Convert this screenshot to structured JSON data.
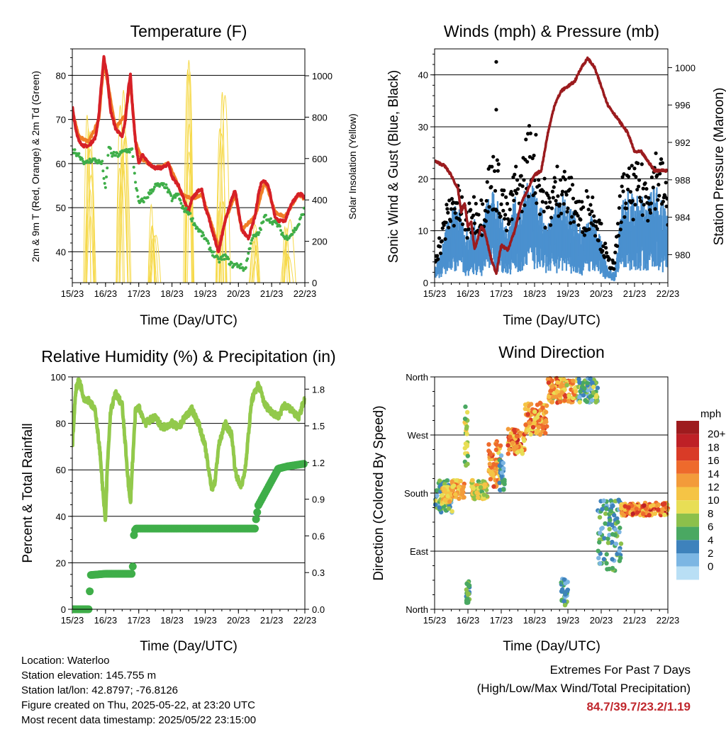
{
  "panels": {
    "temperature": {
      "title": "Temperature (F)",
      "xlabel": "Time (Day/UTC)",
      "ylabel_left": "2m & 9m T (Red, Orange) & 2m Td (Green)",
      "ylabel_right": "Solar Insolation (Yellow)"
    },
    "winds": {
      "title": "Winds (mph) & Pressure (mb)",
      "xlabel": "Time (Day/UTC)",
      "ylabel_left": "Sonic Wind & Gust (Blue, Black)",
      "ylabel_right": "Station Pressure (Maroon)"
    },
    "humidity": {
      "title": "Relative Humidity (%) & Precipitation (in)",
      "xlabel": "Time (Day/UTC)",
      "ylabel_left": "Percent & Total Rainfall"
    },
    "direction": {
      "title": "Wind Direction",
      "xlabel": "Time (Day/UTC)",
      "ylabel_left": "Direction (Colored By Speed)",
      "legend_title": "mph"
    }
  },
  "info": {
    "location": "Location: Waterloo",
    "elevation": "Station elevation: 145.755 m",
    "latlon": "Station lat/lon: 42.8797; -76.8126",
    "created": "Figure created on Thu, 2025-05-22, at 23:20 UTC",
    "timestamp": "Most recent data timestamp: 2025/05/22 23:15:00"
  },
  "extremes": {
    "line1": "Extremes For Past 7 Days",
    "line2": "(High/Low/Max Wind/Total Precipitation)",
    "values": "84.7/39.7/23.2/1.19"
  },
  "chart_data": [
    {
      "type": "line",
      "title": "Temperature (F)",
      "xlabel": "Time (Day/UTC)",
      "x_ticks": [
        "15/23",
        "16/23",
        "17/23",
        "18/23",
        "19/23",
        "20/23",
        "21/23",
        "22/23"
      ],
      "xlim": [
        0,
        7
      ],
      "ylim": [
        33,
        86
      ],
      "y_ticks": [
        40,
        50,
        60,
        70,
        80
      ],
      "ylim_right": [
        0,
        1130
      ],
      "y_ticks_right": [
        0,
        200,
        400,
        600,
        800,
        1000
      ],
      "colors": {
        "temp2m": "#d62027",
        "temp9m": "#f07e26",
        "dewpoint": "#3fae49",
        "solar": "#f6d94a"
      },
      "series": [
        {
          "key": "temp2m",
          "x": [
            0,
            0.1,
            0.2,
            0.35,
            0.5,
            0.7,
            0.8,
            0.85,
            0.9,
            0.95,
            1.05,
            1.15,
            1.3,
            1.5,
            1.6,
            1.7,
            1.75,
            1.8,
            1.9,
            2.0,
            2.1,
            2.3,
            2.5,
            2.7,
            2.9,
            3.0,
            3.2,
            3.3,
            3.5,
            3.6,
            3.8,
            3.9,
            4.0,
            4.1,
            4.2,
            4.4,
            4.6,
            4.8,
            4.9,
            5.1,
            5.3,
            5.5,
            5.6,
            5.7,
            5.8,
            5.9,
            6.1,
            6.2,
            6.4,
            6.6,
            6.8,
            6.9,
            7.0
          ],
          "values": [
            73,
            68,
            65,
            64,
            64,
            66,
            71,
            76,
            80,
            84,
            80,
            72,
            68,
            66,
            70,
            78,
            80,
            74,
            65,
            60,
            62,
            60,
            59,
            59,
            60,
            57,
            55,
            53,
            49,
            52,
            54,
            54,
            50,
            48,
            45,
            40,
            47,
            52,
            54,
            45,
            43,
            48,
            53,
            56,
            56,
            55,
            48,
            47,
            47,
            51,
            53,
            53,
            52
          ]
        },
        {
          "key": "temp9m",
          "x": [
            0,
            0.2,
            0.5,
            0.8,
            0.95,
            1.05,
            1.3,
            1.6,
            1.75,
            1.9,
            2.1,
            2.5,
            2.9,
            3.3,
            3.6,
            3.9,
            4.2,
            4.4,
            4.6,
            4.9,
            5.1,
            5.5,
            5.8,
            6.1,
            6.4,
            6.8,
            7.0
          ],
          "values": [
            72,
            66,
            65,
            70,
            83,
            79,
            68,
            71,
            79,
            65,
            61,
            59,
            60,
            53,
            52,
            53,
            46,
            41,
            47,
            53,
            45,
            48,
            56,
            49,
            48,
            53,
            52
          ]
        },
        {
          "key": "dewpoint",
          "x": [
            0,
            0.2,
            0.4,
            0.6,
            0.9,
            1.0,
            1.1,
            1.2,
            1.4,
            1.6,
            1.8,
            1.9,
            2.0,
            2.2,
            2.5,
            2.8,
            3.0,
            3.2,
            3.3,
            3.5,
            3.7,
            4.0,
            4.2,
            4.4,
            4.6,
            4.8,
            5.0,
            5.2,
            5.4,
            5.6,
            5.8,
            6.0,
            6.2,
            6.4,
            6.6,
            6.8,
            7.0
          ],
          "values": [
            63,
            62,
            60,
            61,
            60,
            54,
            64,
            62,
            62,
            63,
            63,
            56,
            51,
            52,
            55,
            55,
            52,
            53,
            50,
            49,
            46,
            43,
            40,
            38,
            39,
            37,
            37,
            36,
            43,
            44,
            48,
            47,
            46,
            43,
            44,
            46,
            50
          ]
        },
        {
          "key": "solar",
          "axis": "right",
          "peaks": [
            {
              "center": 0.55,
              "width": 0.35,
              "value": 920
            },
            {
              "center": 1.55,
              "width": 0.35,
              "value": 980
            },
            {
              "center": 2.5,
              "width": 0.3,
              "value": 400
            },
            {
              "center": 3.55,
              "width": 0.3,
              "value": 1120
            },
            {
              "center": 4.55,
              "width": 0.35,
              "value": 980
            },
            {
              "center": 5.55,
              "width": 0.3,
              "value": 300
            },
            {
              "center": 6.5,
              "width": 0.35,
              "value": 330
            }
          ]
        }
      ]
    },
    {
      "type": "scatter",
      "title": "Winds (mph) & Pressure (mb)",
      "xlabel": "Time (Day/UTC)",
      "x_ticks": [
        "15/23",
        "16/23",
        "17/23",
        "18/23",
        "19/23",
        "20/23",
        "21/23",
        "22/23"
      ],
      "xlim": [
        0,
        7
      ],
      "ylim": [
        0,
        45
      ],
      "y_ticks": [
        0,
        10,
        20,
        30,
        40
      ],
      "ylim_right": [
        977,
        1002
      ],
      "y_ticks_right": [
        980,
        984,
        988,
        992,
        996,
        1000
      ],
      "colors": {
        "wind": "#4a90cf",
        "gust": "#000000",
        "pressure": "#9b1b1e"
      },
      "series": [
        {
          "key": "wind_envelope",
          "x": [
            0,
            0.2,
            0.4,
            0.6,
            0.8,
            1.0,
            1.2,
            1.4,
            1.6,
            1.8,
            2.0,
            2.2,
            2.4,
            2.6,
            2.8,
            3.0,
            3.2,
            3.4,
            3.6,
            3.8,
            4.0,
            4.2,
            4.4,
            4.6,
            4.8,
            5.0,
            5.2,
            5.4,
            5.6,
            5.8,
            6.0,
            6.2,
            6.4,
            6.6,
            6.8,
            7.0
          ],
          "values": [
            3,
            6,
            12,
            15,
            13,
            10,
            12,
            10,
            16,
            17,
            14,
            10,
            16,
            14,
            20,
            17,
            14,
            11,
            14,
            18,
            14,
            13,
            10,
            13,
            12,
            8,
            3,
            2,
            15,
            17,
            16,
            16,
            16,
            18,
            17,
            12
          ]
        },
        {
          "key": "gust_envelope",
          "x": [
            0,
            0.2,
            0.4,
            0.6,
            0.8,
            1.0,
            1.2,
            1.4,
            1.6,
            1.8,
            2.0,
            2.2,
            2.4,
            2.6,
            2.8,
            3.0,
            3.2,
            3.4,
            3.6,
            3.8,
            4.0,
            4.2,
            4.4,
            4.6,
            4.8,
            5.0,
            5.2,
            5.4,
            5.6,
            5.8,
            6.0,
            6.2,
            6.4,
            6.6,
            6.8,
            7.0
          ],
          "values": [
            6,
            10,
            16,
            19,
            17,
            14,
            17,
            16,
            22,
            25,
            21,
            14,
            22,
            22,
            30,
            29,
            22,
            17,
            21,
            24,
            20,
            19,
            15,
            18,
            17,
            11,
            5,
            4,
            20,
            21,
            22,
            22,
            21,
            26,
            24,
            17
          ]
        },
        {
          "key": "gust_outliers",
          "x": [
            1.85,
            1.85
          ],
          "values": [
            42.5,
            33.3
          ]
        },
        {
          "key": "pressure",
          "x": [
            0,
            0.3,
            0.5,
            0.7,
            0.8,
            0.9,
            1.0,
            1.1,
            1.2,
            1.4,
            1.5,
            1.7,
            1.85,
            2.0,
            2.2,
            2.4,
            2.6,
            2.8,
            3.0,
            3.2,
            3.4,
            3.6,
            3.8,
            4.0,
            4.2,
            4.4,
            4.6,
            4.8,
            5.0,
            5.2,
            5.4,
            5.6,
            5.8,
            6.0,
            6.2,
            6.4,
            6.6,
            6.8,
            7.0
          ],
          "values": [
            990,
            989.5,
            988.5,
            987,
            984.5,
            985.5,
            983,
            983.5,
            980.5,
            983,
            982.5,
            979.5,
            978,
            981,
            980.5,
            982.5,
            985.5,
            987,
            988.5,
            989,
            993,
            996,
            997.5,
            998,
            998.5,
            1000,
            1001,
            1000,
            998,
            996,
            995,
            994,
            993,
            991,
            991,
            990,
            989,
            989,
            989
          ]
        }
      ]
    },
    {
      "type": "line",
      "title": "Relative Humidity (%) & Precipitation (in)",
      "xlabel": "Time (Day/UTC)",
      "x_ticks": [
        "15/23",
        "16/23",
        "17/23",
        "18/23",
        "19/23",
        "20/23",
        "21/23",
        "22/23"
      ],
      "xlim": [
        0,
        7
      ],
      "ylim": [
        0,
        100
      ],
      "y_ticks": [
        0,
        20,
        40,
        60,
        80,
        100
      ],
      "ylim_right": [
        0,
        1.9
      ],
      "y_ticks_right": [
        0.0,
        0.3,
        0.6,
        0.9,
        1.2,
        1.5,
        1.8
      ],
      "colors": {
        "rh": "#92c94b",
        "precip": "#3fae49"
      },
      "series": [
        {
          "key": "rh",
          "x": [
            0,
            0.1,
            0.2,
            0.35,
            0.5,
            0.7,
            0.85,
            0.95,
            1.0,
            1.05,
            1.15,
            1.3,
            1.5,
            1.6,
            1.7,
            1.75,
            1.8,
            1.9,
            2.0,
            2.2,
            2.5,
            2.7,
            3.0,
            3.2,
            3.4,
            3.6,
            3.8,
            4.0,
            4.1,
            4.2,
            4.3,
            4.4,
            4.6,
            4.8,
            4.9,
            5.0,
            5.1,
            5.2,
            5.3,
            5.4,
            5.6,
            5.8,
            6.0,
            6.2,
            6.4,
            6.6,
            6.8,
            7.0
          ],
          "values": [
            70,
            94,
            99,
            91,
            90,
            85,
            65,
            45,
            38,
            60,
            85,
            93,
            88,
            70,
            52,
            45,
            60,
            85,
            87,
            80,
            83,
            78,
            80,
            78,
            83,
            86,
            80,
            70,
            60,
            52,
            55,
            70,
            80,
            75,
            60,
            55,
            53,
            60,
            75,
            90,
            97,
            88,
            85,
            83,
            88,
            86,
            82,
            91
          ]
        },
        {
          "key": "precip",
          "axis": "right",
          "x": [
            0,
            0.25,
            0.5,
            0.52,
            0.55,
            1.0,
            1.8,
            1.82,
            1.85,
            1.9,
            2.0,
            3.0,
            4.0,
            5.0,
            5.5,
            5.52,
            5.6,
            5.8,
            6.0,
            6.2,
            6.5,
            7.0
          ],
          "values": [
            0,
            0,
            0,
            0.12,
            0.28,
            0.29,
            0.29,
            0.35,
            0.6,
            0.66,
            0.66,
            0.66,
            0.66,
            0.66,
            0.66,
            0.72,
            0.85,
            0.95,
            1.05,
            1.15,
            1.17,
            1.19
          ]
        }
      ]
    },
    {
      "type": "scatter",
      "title": "Wind Direction",
      "xlabel": "Time (Day/UTC)",
      "ylabel": "Direction (Colored By Speed)",
      "x_ticks": [
        "15/23",
        "16/23",
        "17/23",
        "18/23",
        "19/23",
        "20/23",
        "21/23",
        "22/23"
      ],
      "xlim": [
        0,
        7
      ],
      "ylim": [
        0,
        360
      ],
      "y_ticks": [
        "North",
        "East",
        "South",
        "West",
        "North"
      ],
      "legend": {
        "title": "mph",
        "labels": [
          "20+",
          "18",
          "16",
          "14",
          "12",
          "10",
          "8",
          "6",
          "4",
          "2",
          "0"
        ],
        "colors": [
          "#9e1b1e",
          "#be2026",
          "#d93b27",
          "#ee6a2c",
          "#f39b3a",
          "#f5c445",
          "#e8de55",
          "#8cc04b",
          "#4aa862",
          "#3e82bc",
          "#7cb6e3",
          "#b9dff5"
        ]
      },
      "clusters": [
        {
          "x": [
            0,
            0.55
          ],
          "dir": [
            150,
            200
          ],
          "speed": [
            2,
            10
          ]
        },
        {
          "x": [
            0.2,
            0.5
          ],
          "dir": [
            165,
            190
          ],
          "speed": [
            8,
            14
          ]
        },
        {
          "x": [
            0.5,
            0.9
          ],
          "dir": [
            170,
            200
          ],
          "speed": [
            10,
            16
          ]
        },
        {
          "x": [
            0.9,
            1.0
          ],
          "dir": [
            220,
            320
          ],
          "speed": [
            6,
            12
          ]
        },
        {
          "x": [
            0.95,
            1.05
          ],
          "dir": [
            10,
            45
          ],
          "speed": [
            4,
            8
          ]
        },
        {
          "x": [
            1.1,
            1.6
          ],
          "dir": [
            170,
            200
          ],
          "speed": [
            6,
            14
          ]
        },
        {
          "x": [
            1.6,
            2.0
          ],
          "dir": [
            190,
            260
          ],
          "speed": [
            10,
            18
          ]
        },
        {
          "x": [
            1.95,
            2.1
          ],
          "dir": [
            180,
            240
          ],
          "speed": [
            2,
            8
          ]
        },
        {
          "x": [
            2.2,
            2.7
          ],
          "dir": [
            240,
            280
          ],
          "speed": [
            10,
            20
          ]
        },
        {
          "x": [
            2.7,
            3.4
          ],
          "dir": [
            270,
            320
          ],
          "speed": [
            10,
            18
          ]
        },
        {
          "x": [
            3.4,
            4.3
          ],
          "dir": [
            320,
            358
          ],
          "speed": [
            8,
            18
          ]
        },
        {
          "x": [
            3.8,
            4.0
          ],
          "dir": [
            5,
            50
          ],
          "speed": [
            2,
            8
          ]
        },
        {
          "x": [
            4.3,
            4.9
          ],
          "dir": [
            320,
            358
          ],
          "speed": [
            2,
            10
          ]
        },
        {
          "x": [
            4.9,
            5.6
          ],
          "dir": [
            60,
            170
          ],
          "speed": [
            2,
            8
          ]
        },
        {
          "x": [
            5.6,
            7.0
          ],
          "dir": [
            145,
            165
          ],
          "speed": [
            10,
            20
          ]
        }
      ]
    }
  ]
}
